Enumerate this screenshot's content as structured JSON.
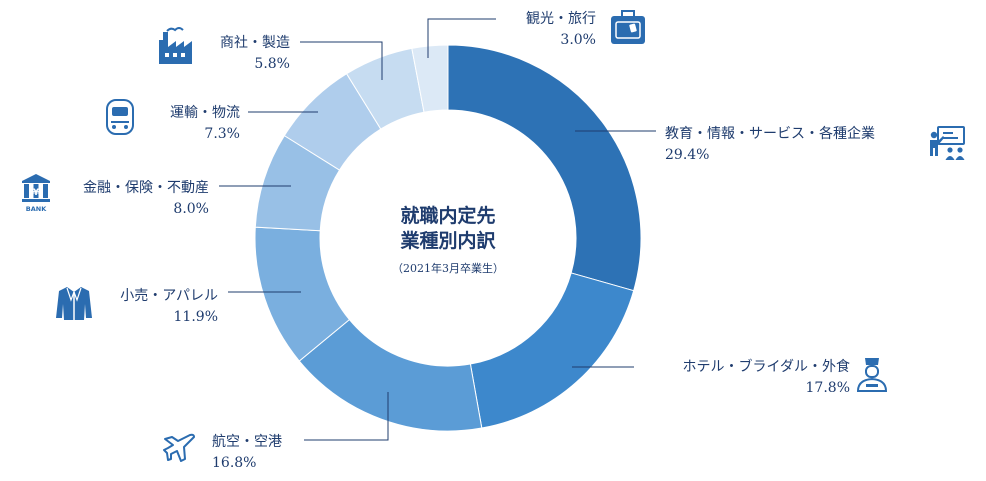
{
  "chart_data": {
    "type": "pie",
    "title_lines": [
      "就職内定先",
      "業種別内訳"
    ],
    "subtitle": "（2021年3月卒業生）",
    "slices": [
      {
        "name": "教育・情報・サービス・各種企業",
        "value": 29.4,
        "label": "29.4%",
        "color": "#2d72b5",
        "icon": "presentation-icon"
      },
      {
        "name": "ホテル・ブライダル・外食",
        "value": 17.8,
        "label": "17.8%",
        "color": "#3d88cc",
        "icon": "bellboy-icon"
      },
      {
        "name": "航空・空港",
        "value": 16.8,
        "label": "16.8%",
        "color": "#5b9cd6",
        "icon": "airplane-icon"
      },
      {
        "name": "小売・アパレル",
        "value": 11.9,
        "label": "11.9%",
        "color": "#7aafdf",
        "icon": "jacket-icon"
      },
      {
        "name": "金融・保険・不動産",
        "value": 8.0,
        "label": "8.0%",
        "color": "#98c0e6",
        "icon": "bank-icon"
      },
      {
        "name": "運輸・物流",
        "value": 7.3,
        "label": "7.3%",
        "color": "#afcdec",
        "icon": "train-icon"
      },
      {
        "name": "商社・製造",
        "value": 5.8,
        "label": "5.8%",
        "color": "#c6dcf1",
        "icon": "factory-icon"
      },
      {
        "name": "観光・旅行",
        "value": 3.0,
        "label": "3.0%",
        "color": "#dce9f6",
        "icon": "suitcase-icon"
      }
    ],
    "bank_icon_text": "BANK",
    "yen_glyph": "¥"
  }
}
